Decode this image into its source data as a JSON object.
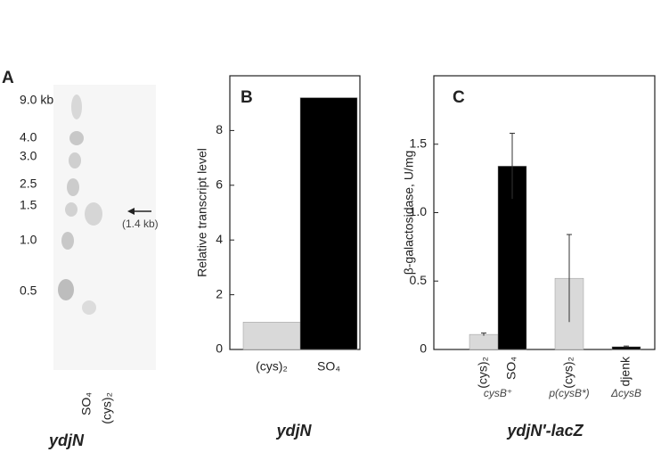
{
  "panel_a": {
    "label": "A",
    "ladder": [
      "9.0 kb",
      "4.0",
      "3.0",
      "2.5",
      "1.5",
      "1.0",
      "0.5"
    ],
    "band_label": "(1.4 kb)",
    "lanes": [
      "SO₄",
      "(cys)₂"
    ],
    "gene": "ydjN"
  },
  "chart_data": [
    {
      "type": "bar",
      "panel": "B",
      "ylabel": "Relative transcript level",
      "categories": [
        "(cys)₂",
        "SO₄"
      ],
      "values": [
        1,
        9.2
      ],
      "colors": [
        "#d9d9d9",
        "#000000"
      ],
      "ylim": [
        0,
        10
      ],
      "yticks": [
        0,
        2,
        4,
        6,
        8
      ],
      "gene": "ydjN"
    },
    {
      "type": "grouped_bar",
      "panel": "C",
      "ylabel": "β-galactosidase, U/mg",
      "groups": [
        {
          "name": "cysB⁺",
          "categories": [
            "(cys)₂",
            "SO₄"
          ],
          "values": [
            0.11,
            1.34
          ],
          "errors": [
            0.01,
            0.24
          ],
          "colors": [
            "#d9d9d9",
            "#000000"
          ]
        },
        {
          "name": "p(cysB*)",
          "categories": [
            "(cys)₂"
          ],
          "values": [
            0.52
          ],
          "errors": [
            0.32
          ],
          "colors": [
            "#d9d9d9"
          ]
        },
        {
          "name": "ΔcysB",
          "categories": [
            "djenk"
          ],
          "values": [
            0.02
          ],
          "errors": [
            0.005
          ],
          "colors": [
            "#000000"
          ]
        }
      ],
      "ylim": [
        0,
        2
      ],
      "yticks": [
        0,
        0.5,
        {
          "value": 1,
          "label": "1.0"
        },
        1.5
      ],
      "gene": "ydjN′-lacZ"
    }
  ]
}
